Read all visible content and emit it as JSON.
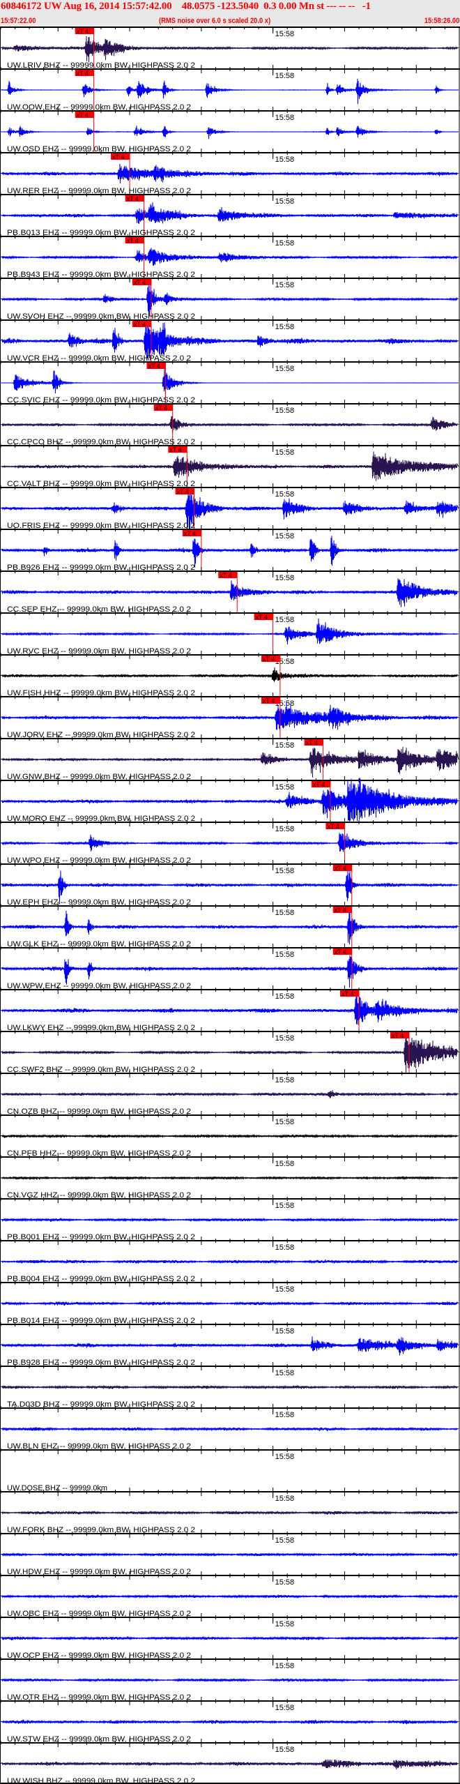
{
  "header": {
    "title": "60846172 UW Aug 16, 2014 15:57:42.00    48.0575 -123.5040  0.3 0.00 Mn st --- -- --   -1",
    "start_time": "15:57:22.00",
    "note": "(RMS noise over 6.0 s scaled 20.0 x)",
    "end_time": "15:58:26.00",
    "background": "#e8e8e8",
    "text_color": "#ff0000"
  },
  "chart_data": {
    "type": "line",
    "time_axis": {
      "start": "15:57:22.00",
      "end": "15:58:26.00",
      "duration_s": 64,
      "tick_label": "15:58",
      "tick_label_s": 38,
      "major_tick_s": 10,
      "minor_tick_s": 2
    },
    "pick_label": "xT 4",
    "pick_color": "#ff0000",
    "traces": [
      {
        "label": "UW.LRIV BHZ -- 99999.0km BW, HIGHPASS  2.0  2",
        "color": "#281450",
        "pick_s": 13,
        "noise": 0.07,
        "bursts": [
          [
            12,
            0.6,
            1.5
          ],
          [
            14.5,
            0.3,
            2.5
          ],
          [
            2,
            0.12,
            4
          ]
        ]
      },
      {
        "label": "UW.OOW EHZ -- 99999.0km BW, HIGHPASS  2.0  2",
        "color": "#0000ff",
        "pick_s": 13,
        "noise": 0.01,
        "bursts": [
          [
            1.2,
            0.35,
            0.6
          ],
          [
            11.6,
            0.4,
            0.8
          ],
          [
            17.8,
            0.3,
            0.5
          ],
          [
            19.2,
            0.45,
            1.2
          ],
          [
            22.8,
            0.45,
            0.4
          ],
          [
            28.8,
            0.45,
            0.9
          ],
          [
            45.6,
            0.3,
            0.3
          ],
          [
            47,
            0.3,
            0.8
          ],
          [
            49.8,
            0.55,
            1
          ],
          [
            60.8,
            0.25,
            0.3
          ]
        ]
      },
      {
        "label": "UW.OSD EHZ -- 99999.0km BW, HIGHPASS  2.0  2",
        "color": "#0000ff",
        "pick_s": 13,
        "noise": 0.01,
        "bursts": [
          [
            1.2,
            0.25,
            0.6
          ],
          [
            2.7,
            0.3,
            0.6
          ],
          [
            12.2,
            0.25,
            0.6
          ],
          [
            18.8,
            0.25,
            1.2
          ],
          [
            22.8,
            0.3,
            0.4
          ],
          [
            29,
            0.3,
            0.8
          ],
          [
            45.6,
            0.25,
            0.3
          ],
          [
            47,
            0.25,
            0.8
          ],
          [
            49.8,
            0.3,
            1
          ],
          [
            60.8,
            0.15,
            0.3
          ]
        ]
      },
      {
        "label": "UW.RER EHZ -- 99999.0km BW, HIGHPASS  2.0  2",
        "color": "#0000ff",
        "pick_s": 18,
        "noise": 0.09,
        "bursts": [
          [
            16.5,
            0.45,
            3
          ],
          [
            21.5,
            0.3,
            3
          ]
        ]
      },
      {
        "label": "PB.B013 EHZ -- 99999.0km BW, HIGHPASS  2.0  2",
        "color": "#0000ff",
        "pick_s": 20,
        "noise": 0.09,
        "bursts": [
          [
            19,
            0.4,
            1.5
          ],
          [
            20.8,
            0.4,
            3
          ],
          [
            30.5,
            0.3,
            2.5
          ],
          [
            55,
            0.15,
            3
          ]
        ]
      },
      {
        "label": "PB.B943 EHZ -- 99999.0km BW, HIGHPASS  2.0  2",
        "color": "#0000ff",
        "pick_s": 20,
        "noise": 0.06,
        "bursts": [
          [
            19,
            0.3,
            1.5
          ],
          [
            20.8,
            0.35,
            3
          ],
          [
            30.5,
            0.25,
            2.5
          ]
        ]
      },
      {
        "label": "UW.SVOH EHZ -- 99999.0km BW, HIGHPASS  2.0  2",
        "color": "#0000ff",
        "pick_s": 21,
        "noise": 0.06,
        "bursts": [
          [
            20.6,
            0.95,
            0.8
          ],
          [
            14.5,
            0.25,
            1
          ],
          [
            23,
            0.2,
            1
          ]
        ]
      },
      {
        "label": "UW.VCR EHZ -- 99999.0km BW, HIGHPASS  2.0  2",
        "color": "#0000ff",
        "pick_s": 21,
        "noise": 0.12,
        "bursts": [
          [
            20.2,
            1.0,
            2.5
          ],
          [
            15.8,
            0.8,
            0.5
          ],
          [
            9.6,
            0.4,
            1
          ],
          [
            22.3,
            0.7,
            0.6
          ],
          [
            36,
            0.3,
            1
          ]
        ]
      },
      {
        "label": "CC.SVIC EHZ -- 99999.0km BW, HIGHPASS  2.0  2",
        "color": "#0000ff",
        "pick_s": 23,
        "noise": 0.005,
        "bursts": [
          [
            2,
            0.45,
            2
          ],
          [
            7.4,
            0.7,
            0.6
          ],
          [
            22.8,
            0.7,
            1.2
          ]
        ]
      },
      {
        "label": "CC.CPCO BHZ -- 99999.0km BW, HIGHPASS  2.0  2",
        "color": "#281450",
        "pick_s": 24,
        "noise": 0.07,
        "bursts": [
          [
            23.8,
            0.5,
            1.2
          ],
          [
            60.2,
            0.35,
            1.5
          ]
        ]
      },
      {
        "label": "CC.VALT BHZ -- 99999.0km BW, HIGHPASS  2.0  2",
        "color": "#281450",
        "pick_s": 26,
        "noise": 0.09,
        "bursts": [
          [
            24.3,
            0.6,
            3
          ],
          [
            52,
            0.7,
            5
          ]
        ]
      },
      {
        "label": "UO.FRIS EHZ -- 99999.0km BW, HIGHPASS  2.0  2",
        "color": "#0000ff",
        "pick_s": 27,
        "noise": 0.09,
        "bursts": [
          [
            26,
            0.95,
            2
          ],
          [
            39.5,
            0.45,
            2
          ],
          [
            48,
            0.3,
            2
          ],
          [
            56.5,
            0.35,
            2
          ],
          [
            61,
            0.35,
            1.5
          ],
          [
            15.7,
            0.3,
            1
          ]
        ]
      },
      {
        "label": "PB.B926 EHZ -- 99999.0km BW, HIGHPASS  2.0  2",
        "color": "#0000ff",
        "pick_s": 28,
        "noise": 0.09,
        "bursts": [
          [
            27,
            1.0,
            0.4
          ],
          [
            16,
            0.6,
            0.4
          ],
          [
            43.3,
            1.0,
            0.4
          ],
          [
            46.2,
            0.9,
            0.4
          ],
          [
            35,
            0.5,
            0.4
          ],
          [
            6.2,
            0.3,
            0.3
          ]
        ]
      },
      {
        "label": "CC.SEP EHZ -- 99999.0km BW, HIGHPASS  2.0  2",
        "color": "#0000ff",
        "pick_s": 33,
        "noise": 0.09,
        "bursts": [
          [
            32.2,
            0.45,
            2
          ],
          [
            55.5,
            0.75,
            3
          ]
        ]
      },
      {
        "label": "UW.RVC EHZ -- 99999.0km BW, HIGHPASS  2.0  2",
        "color": "#0000ff",
        "pick_s": 38,
        "noise": 0.05,
        "bursts": [
          [
            39.8,
            0.4,
            2
          ],
          [
            44.2,
            0.5,
            3
          ]
        ]
      },
      {
        "label": "UW.FISH HHZ -- 99999.0km BW, HIGHPASS  2.0  2",
        "color": "#000000",
        "pick_s": 39,
        "noise": 0.08,
        "bursts": [
          [
            38,
            0.35,
            1.5
          ]
        ]
      },
      {
        "label": "UW.JORV EHZ -- 99999.0km BW, HIGHPASS  2.0  2",
        "color": "#0000ff",
        "pick_s": 39,
        "noise": 0.08,
        "bursts": [
          [
            38.5,
            0.6,
            6
          ],
          [
            46,
            0.4,
            2
          ]
        ]
      },
      {
        "label": "UW.GNW BHZ -- 99999.0km BW, HIGHPASS  2.0  2",
        "color": "#281450",
        "pick_s": 45,
        "noise": 0.06,
        "bursts": [
          [
            36.5,
            0.3,
            2
          ],
          [
            43.3,
            0.65,
            3
          ],
          [
            50,
            0.4,
            3
          ],
          [
            55.5,
            0.65,
            3
          ],
          [
            61,
            0.45,
            3
          ]
        ]
      },
      {
        "label": "UW.MORO EHZ -- 99999.0km BW, HIGHPASS  2.0  2",
        "color": "#0000ff",
        "pick_s": 46,
        "noise": 0.09,
        "bursts": [
          [
            40,
            0.3,
            3
          ],
          [
            45,
            0.6,
            3
          ],
          [
            48.5,
            1.0,
            6
          ]
        ]
      },
      {
        "label": "UW.WPO EHZ -- 99999.0km BW, HIGHPASS  2.0  2",
        "color": "#0000ff",
        "pick_s": 48,
        "noise": 0.06,
        "bursts": [
          [
            12.5,
            0.45,
            1
          ],
          [
            47.3,
            0.55,
            2
          ]
        ]
      },
      {
        "label": "UW.EPH EHZ -- 99999.0km BW, HIGHPASS  2.0  2",
        "color": "#0000ff",
        "pick_s": 49,
        "noise": 0.09,
        "bursts": [
          [
            8.2,
            1.0,
            0.4
          ],
          [
            48.3,
            1.0,
            0.6
          ]
        ]
      },
      {
        "label": "UW.GLK EHZ -- 99999.0km BW, HIGHPASS  2.0  2",
        "color": "#0000ff",
        "pick_s": 49,
        "noise": 0.09,
        "bursts": [
          [
            9.1,
            1.0,
            0.3
          ],
          [
            12.3,
            0.55,
            0.3
          ],
          [
            48.6,
            0.95,
            0.6
          ]
        ]
      },
      {
        "label": "UW.WPW EHZ -- 99999.0km BW, HIGHPASS  2.0  2",
        "color": "#0000ff",
        "pick_s": 49,
        "noise": 0.09,
        "bursts": [
          [
            9.1,
            1.0,
            0.3
          ],
          [
            12.3,
            0.55,
            0.3
          ],
          [
            48.6,
            0.95,
            0.8
          ]
        ]
      },
      {
        "label": "UW.LKWY EHZ -- 99999.0km BW, HIGHPASS  2.0  2",
        "color": "#0000ff",
        "pick_s": 50,
        "noise": 0.11,
        "bursts": [
          [
            49.6,
            0.85,
            1.5
          ],
          [
            52.5,
            0.45,
            3
          ]
        ]
      },
      {
        "label": "CC.SWF2 BHZ -- 99999.0km BW, HIGHPASS  2.0  2",
        "color": "#281450",
        "pick_s": 57,
        "noise": 0.06,
        "bursts": [
          [
            56.5,
            0.95,
            4
          ]
        ]
      },
      {
        "label": "CN.OZB BHZ -- 99999.0km BW, HIGHPASS  2.0  2",
        "color": "#281450",
        "pick_s": null,
        "noise": 0.08,
        "bursts": [
          [
            45.8,
            0.2,
            1
          ]
        ]
      },
      {
        "label": "CN.PFB HHZ -- 99999.0km BW, HIGHPASS  2.0  2",
        "color": "#000000",
        "pick_s": null,
        "noise": 0.07,
        "bursts": []
      },
      {
        "label": "CN.VGZ HHZ -- 99999.0km BW, HIGHPASS  2.0  2",
        "color": "#000000",
        "pick_s": null,
        "noise": 0.06,
        "bursts": []
      },
      {
        "label": "PB.B001 EHZ -- 99999.0km BW, HIGHPASS  2.0  2",
        "color": "#0000ff",
        "pick_s": null,
        "noise": 0.07,
        "bursts": []
      },
      {
        "label": "PB.B004 EHZ -- 99999.0km BW, HIGHPASS  2.0  2",
        "color": "#0000ff",
        "pick_s": null,
        "noise": 0.09,
        "bursts": []
      },
      {
        "label": "PB.B014 EHZ -- 99999.0km BW, HIGHPASS  2.0  2",
        "color": "#0000ff",
        "pick_s": null,
        "noise": 0.08,
        "bursts": []
      },
      {
        "label": "PB.B928 EHZ -- 99999.0km BW, HIGHPASS  2.0  2",
        "color": "#0000ff",
        "pick_s": null,
        "noise": 0.09,
        "bursts": [
          [
            43.5,
            0.3,
            2
          ],
          [
            50,
            0.3,
            4
          ],
          [
            55.5,
            0.3,
            2
          ],
          [
            61,
            0.25,
            2
          ]
        ]
      },
      {
        "label": "TA.D03D BHZ -- 99999.0km BW, HIGHPASS  2.0  2",
        "color": "#281450",
        "pick_s": null,
        "noise": 0.07,
        "bursts": []
      },
      {
        "label": "UW.BLN EHZ -- 99999.0km BW, HIGHPASS  2.0  2",
        "color": "#0000ff",
        "pick_s": null,
        "noise": 0.08,
        "bursts": []
      },
      {
        "label": "UW.DOSE BHZ -- 99999.0km",
        "color": "#281450",
        "pick_s": null,
        "noise": 0,
        "bursts": [],
        "empty": true
      },
      {
        "label": "UW.FORK BHZ -- 99999.0km BW, HIGHPASS  2.0  2",
        "color": "#281450",
        "pick_s": null,
        "noise": 0.08,
        "bursts": []
      },
      {
        "label": "UW.HDW EHZ -- 99999.0km BW, HIGHPASS  2.0  2",
        "color": "#0000ff",
        "pick_s": null,
        "noise": 0.07,
        "bursts": []
      },
      {
        "label": "UW.OBC EHZ -- 99999.0km BW, HIGHPASS  2.0  2",
        "color": "#0000ff",
        "pick_s": null,
        "noise": 0.07,
        "bursts": []
      },
      {
        "label": "UW.OCP EHZ -- 99999.0km BW, HIGHPASS  2.0  2",
        "color": "#0000ff",
        "pick_s": null,
        "noise": 0.08,
        "bursts": []
      },
      {
        "label": "UW.OTR EHZ -- 99999.0km BW, HIGHPASS  2.0  2",
        "color": "#0000ff",
        "pick_s": null,
        "noise": 0.07,
        "bursts": []
      },
      {
        "label": "UW.STW EHZ -- 99999.0km BW, HIGHPASS  2.0  2",
        "color": "#0000ff",
        "pick_s": null,
        "noise": 0.09,
        "bursts": []
      },
      {
        "label": "UW.WISH BHZ -- 99999.0km BW, HIGHPASS  2.0  2",
        "color": "#281450",
        "pick_s": null,
        "noise": 0.09,
        "bursts": [
          [
            45,
            0.15,
            5
          ],
          [
            55,
            0.15,
            4
          ]
        ]
      }
    ]
  }
}
